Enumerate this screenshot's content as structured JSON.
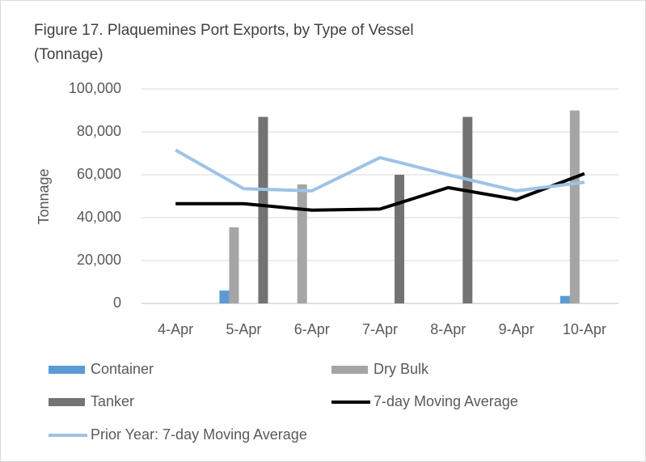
{
  "chart_data": {
    "type": "bar",
    "title": "Figure 17. Plaquemines Port Exports, by Type of Vessel",
    "subtitle": "(Tonnage)",
    "y_label": "Tonnage",
    "categories": [
      "4-Apr",
      "5-Apr",
      "6-Apr",
      "7-Apr",
      "8-Apr",
      "9-Apr",
      "10-Apr"
    ],
    "series": [
      {
        "name": "Container",
        "type": "bar",
        "color": "#5b9bd5",
        "values": [
          0,
          6000,
          0,
          0,
          0,
          0,
          3500
        ]
      },
      {
        "name": "Dry Bulk",
        "type": "bar",
        "color": "#a5a5a5",
        "values": [
          0,
          35500,
          55500,
          0,
          0,
          0,
          90000
        ]
      },
      {
        "name": "Tanker",
        "type": "bar",
        "color": "#737373",
        "values": [
          0,
          87000,
          0,
          60000,
          87000,
          0,
          0
        ]
      },
      {
        "name": "7-day Moving Average",
        "type": "line",
        "color": "#000000",
        "values": [
          46500,
          46500,
          43500,
          44000,
          54000,
          48500,
          60500
        ]
      },
      {
        "name": "Prior Year: 7-day Moving Average",
        "type": "line",
        "color": "#9dc3e6",
        "values": [
          71500,
          53500,
          52500,
          68000,
          60000,
          52500,
          56500
        ]
      }
    ],
    "ylim": [
      0,
      100000
    ],
    "yticks": [
      0,
      {
        "value": 20000,
        "label": "20,000"
      },
      {
        "value": 40000,
        "label": "40,000"
      },
      {
        "value": 60000,
        "label": "60,000"
      },
      {
        "value": 80000,
        "label": "80,000"
      },
      {
        "value": 100000,
        "label": "100,000"
      }
    ],
    "grid": true,
    "legend": "bottom"
  }
}
